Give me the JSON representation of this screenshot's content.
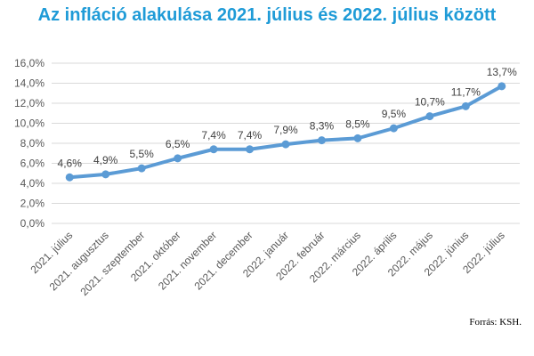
{
  "chart_data": {
    "type": "line",
    "title": "Az infláció alakulása 2021. július és 2022. július között",
    "categories": [
      "2021. július",
      "2021. augusztus",
      "2021. szeptember",
      "2021. október",
      "2021. november",
      "2021. december",
      "2022. január",
      "2022. február",
      "2022. március",
      "2022. április",
      "2022. május",
      "2022. június",
      "2022. július"
    ],
    "series": [
      {
        "values": [
          4.6,
          4.9,
          5.5,
          6.5,
          7.4,
          7.4,
          7.9,
          8.3,
          8.5,
          9.5,
          10.7,
          11.7,
          13.7
        ]
      }
    ],
    "data_labels": [
      "4,6%",
      "4,9%",
      "5,5%",
      "6,5%",
      "7,4%",
      "7,4%",
      "7,9%",
      "8,3%",
      "8,5%",
      "9,5%",
      "10,7%",
      "11,7%",
      "13,7%"
    ],
    "ylim": [
      0,
      16
    ],
    "yticks": [
      0,
      2,
      4,
      6,
      8,
      10,
      12,
      14,
      16
    ],
    "ytick_labels": [
      "0,0%",
      "2,0%",
      "4,0%",
      "6,0%",
      "8,0%",
      "10,0%",
      "12,0%",
      "14,0%",
      "16,0%"
    ],
    "grid": true,
    "line_color": "#5b9bd5",
    "title_color": "#1f9bd7"
  },
  "source_note": "Forrás: KSH."
}
